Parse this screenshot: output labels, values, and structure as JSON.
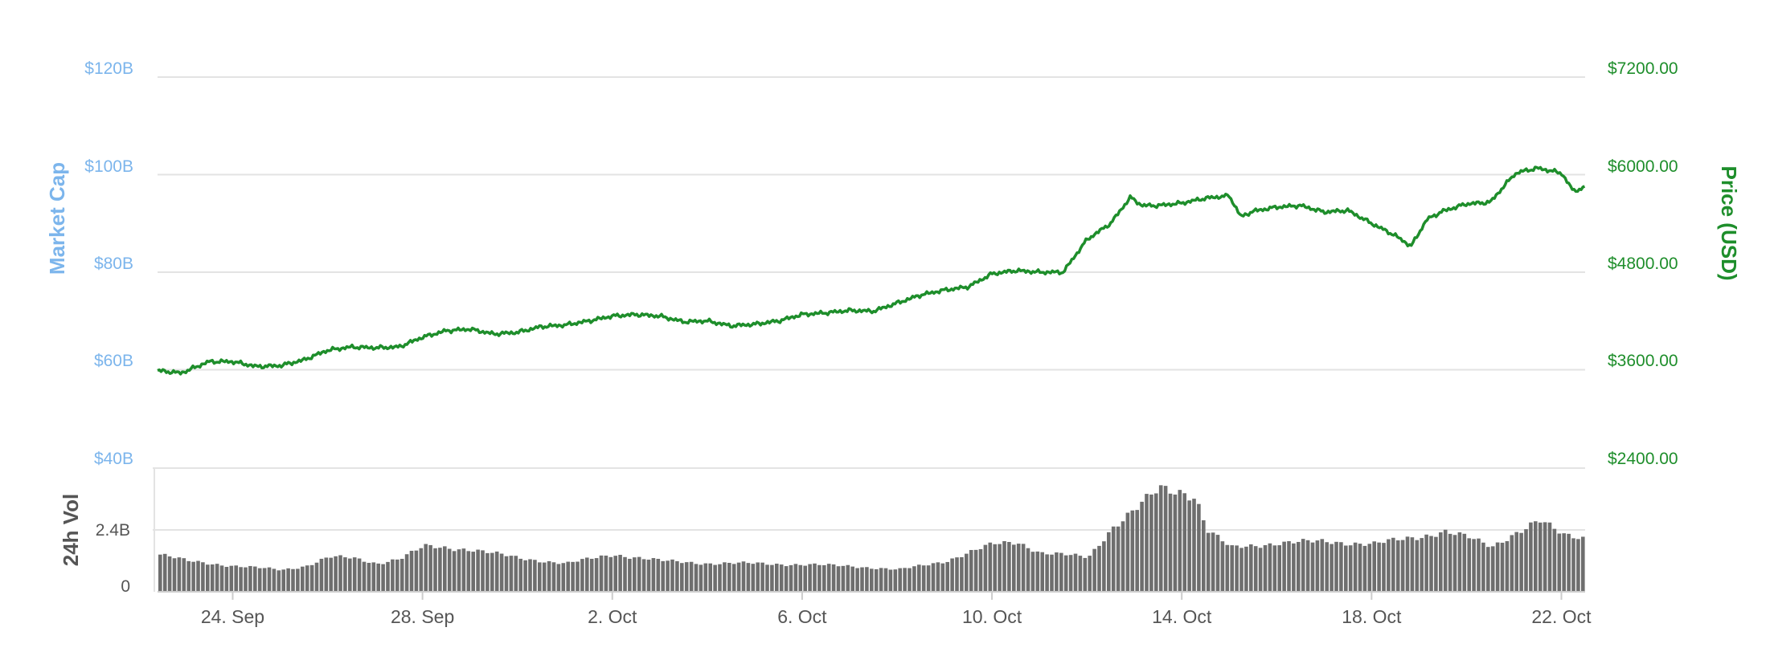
{
  "chart_data": {
    "type": "line",
    "axes": {
      "left_title": "Market Cap",
      "right_title": "Price (USD)",
      "volume_title": "24h Vol",
      "left_ticks": [
        "$120B",
        "$100B",
        "$80B",
        "$60B",
        "$40B"
      ],
      "left_range_billion_usd": [
        40,
        120
      ],
      "right_ticks": [
        "$7200.00",
        "$6000.00",
        "$4800.00",
        "$3600.00",
        "$2400.00"
      ],
      "right_range_usd": [
        2400,
        7200
      ],
      "volume_ticks": [
        "2.4B",
        "0"
      ],
      "volume_range_billion_usd": [
        0,
        4.8
      ],
      "x_tick_labels": [
        "24. Sep",
        "28. Sep",
        "2. Oct",
        "6. Oct",
        "10. Oct",
        "14. Oct",
        "18. Oct",
        "22. Oct"
      ],
      "x_ticks": [
        "2017-09-24",
        "2017-09-28",
        "2017-10-02",
        "2017-10-06",
        "2017-10-10",
        "2017-10-14",
        "2017-10-18",
        "2017-10-22"
      ],
      "x_range": [
        "2017-09-22T10:00",
        "2017-10-22T12:00"
      ],
      "grid": true
    },
    "series": [
      {
        "name": "Price (USD)",
        "color": "#1e8e2b",
        "x": [
          "2017-09-22T10:00",
          "2017-09-22T22:00",
          "2017-09-23T04:00",
          "2017-09-23T12:00",
          "2017-09-24T00:00",
          "2017-09-24T12:00",
          "2017-09-25T00:00",
          "2017-09-25T12:00",
          "2017-09-26T00:00",
          "2017-09-26T12:00",
          "2017-09-27T00:00",
          "2017-09-27T12:00",
          "2017-09-28T00:00",
          "2017-09-28T12:00",
          "2017-09-29T00:00",
          "2017-09-29T12:00",
          "2017-09-30T00:00",
          "2017-09-30T12:00",
          "2017-10-01T00:00",
          "2017-10-01T12:00",
          "2017-10-02T00:00",
          "2017-10-02T12:00",
          "2017-10-03T00:00",
          "2017-10-03T12:00",
          "2017-10-04T00:00",
          "2017-10-04T12:00",
          "2017-10-05T00:00",
          "2017-10-05T12:00",
          "2017-10-06T00:00",
          "2017-10-06T12:00",
          "2017-10-07T00:00",
          "2017-10-07T12:00",
          "2017-10-08T00:00",
          "2017-10-08T12:00",
          "2017-10-09T00:00",
          "2017-10-09T12:00",
          "2017-10-10T00:00",
          "2017-10-10T12:00",
          "2017-10-11T00:00",
          "2017-10-11T12:00",
          "2017-10-12T00:00",
          "2017-10-12T12:00",
          "2017-10-12T22:00",
          "2017-10-13T04:00",
          "2017-10-13T12:00",
          "2017-10-14T00:00",
          "2017-10-14T12:00",
          "2017-10-15T00:00",
          "2017-10-15T06:00",
          "2017-10-15T12:00",
          "2017-10-16T00:00",
          "2017-10-16T12:00",
          "2017-10-17T00:00",
          "2017-10-17T12:00",
          "2017-10-18T00:00",
          "2017-10-18T12:00",
          "2017-10-18T20:00",
          "2017-10-19T04:00",
          "2017-10-19T12:00",
          "2017-10-20T00:00",
          "2017-10-20T12:00",
          "2017-10-21T00:00",
          "2017-10-21T04:00",
          "2017-10-21T12:00",
          "2017-10-22T00:00",
          "2017-10-22T06:00",
          "2017-10-22T12:00"
        ],
        "y": [
          3590,
          3560,
          3620,
          3700,
          3700,
          3640,
          3650,
          3720,
          3840,
          3880,
          3870,
          3880,
          4000,
          4080,
          4100,
          4040,
          4060,
          4130,
          4150,
          4200,
          4260,
          4280,
          4260,
          4190,
          4200,
          4140,
          4160,
          4200,
          4280,
          4300,
          4330,
          4320,
          4420,
          4520,
          4580,
          4620,
          4780,
          4820,
          4800,
          4800,
          5200,
          5400,
          5720,
          5620,
          5620,
          5650,
          5710,
          5740,
          5480,
          5550,
          5600,
          5620,
          5540,
          5560,
          5400,
          5250,
          5120,
          5450,
          5550,
          5640,
          5660,
          6000,
          6040,
          6080,
          6020,
          5800,
          5840
        ]
      },
      {
        "name": "24h Vol",
        "type": "bar",
        "color": "#6e6e6e",
        "x": [
          "2017-09-22T10:00",
          "2017-09-23T00:00",
          "2017-09-24T00:00",
          "2017-09-25T00:00",
          "2017-09-25T12:00",
          "2017-09-26T00:00",
          "2017-09-26T12:00",
          "2017-09-27T00:00",
          "2017-09-27T12:00",
          "2017-09-28T00:00",
          "2017-09-29T00:00",
          "2017-09-30T00:00",
          "2017-10-01T00:00",
          "2017-10-02T00:00",
          "2017-10-03T00:00",
          "2017-10-04T00:00",
          "2017-10-05T00:00",
          "2017-10-06T00:00",
          "2017-10-07T00:00",
          "2017-10-08T00:00",
          "2017-10-09T00:00",
          "2017-10-10T00:00",
          "2017-10-10T12:00",
          "2017-10-11T00:00",
          "2017-10-12T00:00",
          "2017-10-12T12:00",
          "2017-10-13T00:00",
          "2017-10-13T12:00",
          "2017-10-14T00:00",
          "2017-10-14T06:00",
          "2017-10-14T12:00",
          "2017-10-15T00:00",
          "2017-10-16T00:00",
          "2017-10-17T00:00",
          "2017-10-18T00:00",
          "2017-10-19T00:00",
          "2017-10-19T12:00",
          "2017-10-20T00:00",
          "2017-10-20T12:00",
          "2017-10-21T00:00",
          "2017-10-21T12:00",
          "2017-10-22T00:00",
          "2017-10-22T12:00"
        ],
        "y": [
          1.45,
          1.2,
          1.0,
          0.85,
          1.0,
          1.35,
          1.3,
          1.1,
          1.3,
          1.75,
          1.65,
          1.3,
          1.1,
          1.45,
          1.2,
          1.1,
          1.1,
          1.05,
          1.0,
          0.85,
          1.2,
          1.85,
          1.95,
          1.5,
          1.35,
          2.5,
          3.2,
          4.0,
          3.9,
          3.7,
          2.4,
          1.7,
          1.9,
          1.95,
          1.85,
          2.15,
          2.35,
          2.1,
          1.75,
          2.3,
          2.75,
          2.2,
          2.1
        ]
      }
    ]
  }
}
